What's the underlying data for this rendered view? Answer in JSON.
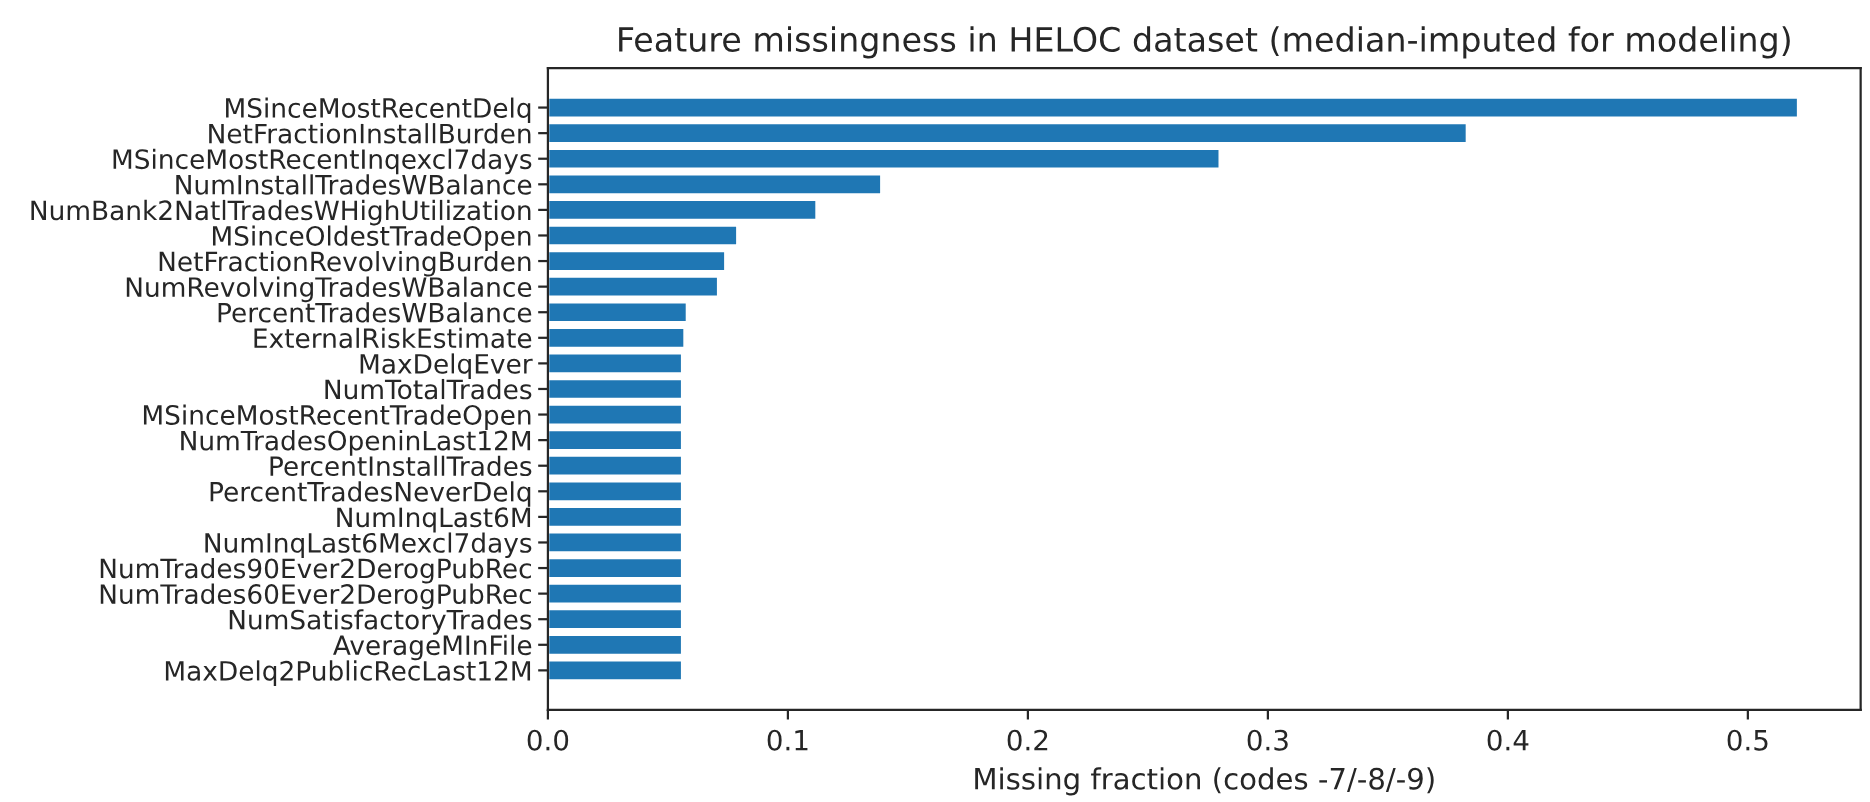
{
  "chart_data": {
    "type": "bar",
    "orientation": "horizontal",
    "title": "Feature missingness in HELOC dataset (median-imputed for modeling)",
    "xlabel": "Missing fraction (codes -7/-8/-9)",
    "categories": [
      "MSinceMostRecentDelq",
      "NetFractionInstallBurden",
      "MSinceMostRecentInqexcl7days",
      "NumInstallTradesWBalance",
      "NumBank2NatlTradesWHighUtilization",
      "MSinceOldestTradeOpen",
      "NetFractionRevolvingBurden",
      "NumRevolvingTradesWBalance",
      "PercentTradesWBalance",
      "ExternalRiskEstimate",
      "MaxDelqEver",
      "NumTotalTrades",
      "MSinceMostRecentTradeOpen",
      "NumTradesOpeninLast12M",
      "PercentInstallTrades",
      "PercentTradesNeverDelq",
      "NumInqLast6M",
      "NumInqLast6Mexcl7days",
      "NumTrades90Ever2DerogPubRec",
      "NumTrades60Ever2DerogPubRec",
      "NumSatisfactoryTrades",
      "AverageMInFile",
      "MaxDelq2PublicRecLast12M"
    ],
    "values": [
      0.521,
      0.383,
      0.28,
      0.139,
      0.112,
      0.079,
      0.074,
      0.071,
      0.058,
      0.057,
      0.056,
      0.056,
      0.056,
      0.056,
      0.056,
      0.056,
      0.056,
      0.056,
      0.056,
      0.056,
      0.056,
      0.056,
      0.056
    ],
    "color": "#1f77b4",
    "xlim": [
      0,
      0.547
    ],
    "xticks": [
      {
        "value": 0,
        "label": "0.0"
      },
      0.1,
      0.2,
      0.3,
      0.4,
      0.5
    ],
    "grid": false,
    "legend": false
  }
}
